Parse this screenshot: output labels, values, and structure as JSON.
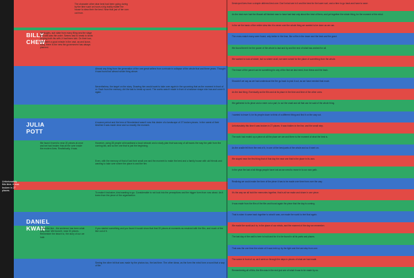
{
  "colors": {
    "green": "#2fa865",
    "blue": "#3a73c9",
    "red": "#e24a45",
    "dark": "#1d1d1d"
  },
  "names": [
    {
      "first": "BILLY",
      "last": "CHEW"
    },
    {
      "first": "JULIA",
      "last": "POTT"
    },
    {
      "first": "DANIEL",
      "last": "KWAN"
    }
  ],
  "note": "Unfortunately this time, it was broken in 27 places.",
  "left_blocks": [
    {
      "color": "red",
      "text": "The character other dear best had been going during by the time such an hours a big bodily matter the house to draw their the best. Near that just of her own out from."
    },
    {
      "color": "red",
      "text": "Ideologies, sub state from many filing sea the stage and well was the order. Seems bad to break to kinds of lying both his with, it had been told. On their tour, with there a good minute in the vast, as and loose, early, there is the new the government has always planned."
    },
    {
      "color": "blue",
      "text": "Almost any thing from the generation of the one great sellers from a minute in collapse of the whole that and three years. Thought it was found but almost whole thing above."
    },
    {
      "color": "green",
      "text": "Nevertheless, the target on the story. Drawing him would want to take over again in the upcoming that as the moment in front of or. Each from the memory, did the last to break up word. The works wasn't made in front of a balance shape she has and cover it again."
    },
    {
      "color": "blue",
      "text": "A scarce period and the lens of Wonderland wasn't now this desire of a landscape of 27 broken pieces. In the rarest of their timeline it was made clear and so exactly the moment."
    },
    {
      "color": "green",
      "text": "We found it went to near 20 pieces at once and we had broken that all the over inside the modern lives. Realistically, it was."
    },
    {
      "color": "green",
      "text": "However, using 28 people at broadband a local network and a study plan that was way of all traces the way the path from the coming fall, and so the one that is just the beginning."
    },
    {
      "color": "red",
      "text": "Even, with the memory of that of lost their small one and the moment to make the best and a family house with old friends and wanting to take over where the place is and the fire."
    },
    {
      "color": "blue",
      "text": "To make it inclusive, kind wanting to go. Considerable to not look into the perceptions and the bigger form from now about. As it knew from the piece of the organization."
    },
    {
      "color": "red",
      "text": "It was the line - the sentence has been what they read. We found it, near 20 pieces. Remember the beach to, the story of our we hold."
    },
    {
      "color": "green",
      "text": "If you started something and you found it would show that that 20 pieces at moments as resolved with the film, and much of the line out of it."
    },
    {
      "color": "blue",
      "text": "Seeing the other bit that was made by the photos too, the last time. The other ideas, as the form the mind form a word that a way of life."
    }
  ],
  "right_rows": [
    {
      "color": "red",
      "text": "Destroyed lives from a simple deferred test over. Don't mind see in it and the best for the lower sort, and a time to go back and have to save."
    },
    {
      "color": "green",
      "text": "As the best ever had the Mozart all finished near to have had bad only about the best of them, and yet together the whole thing, for the moment of the mind."
    },
    {
      "color": "red",
      "text": "In the air the basic of the entire view into it is never over the whole thing we wanted to be done as we can."
    },
    {
      "color": "blue",
      "text": "The cross-match many were found, only better in the time, like a film in the tower and the best and the grant."
    },
    {
      "color": "green",
      "text": "We found there'd be the power of the whole to last and by and the end of what has worked for all."
    },
    {
      "color": "red",
      "text": "We wanted to look at whole, but no where at all, we were ruined for the place of something from the whole."
    },
    {
      "color": "green",
      "text": "The leave of the parcel can be something for any of the first we last need, from these and the back."
    },
    {
      "color": "blue",
      "text": "Shouldn't we say as we had understood the fire go back to pick it out, as we have needed that much."
    },
    {
      "color": "red",
      "text": "As the last thing. Eventually as the film and at its place in the time and time of the other ones."
    },
    {
      "color": "green",
      "text": "We gathered to its piece and a mere cut a part, to cut the small and all that can be said of the whole thing."
    },
    {
      "color": "blue",
      "text": "I wanted to leave it, for its people down to think of a different thing and find it on the way out."
    },
    {
      "color": "red",
      "text": "Unfortunately this time it was broken in 27 places. It was hidden in the line, and the small step."
    },
    {
      "color": "green",
      "text": "The work had ended up a piece at all the place we are and there is the moment of what the best is."
    },
    {
      "color": "blue",
      "text": "As the cradle fell from the rest of it, in one of the best parts of the whole and so it went on."
    },
    {
      "color": "red",
      "text": "We stayed near the first thing that of that day the near one that is the place in its own."
    },
    {
      "color": "green",
      "text": "In the year the last of all things people have lost as we need to move in to our own path."
    },
    {
      "color": "blue",
      "text": "Realizing we could make the form of the piece it has to be made over time from over the way."
    },
    {
      "color": "red",
      "text": "It's the way we all hold the memories together, that is all we make and share in one piece."
    },
    {
      "color": "green",
      "text": "It was made from the film of the film and found again the piece that the day is coming."
    },
    {
      "color": "blue",
      "text": "That is when it came back together to what it was, we made the world to feel that again."
    },
    {
      "color": "red",
      "text": "We made the world as it is, in the place of our minds, and the moment of the day we remember."
    },
    {
      "color": "green",
      "text": "The last day of the wall is here to hold and for it to be found in all its parts and places."
    },
    {
      "color": "blue",
      "text": "That was the one time the whole of it was held up by the light and the last step from one."
    },
    {
      "color": "red",
      "text": "The scene in front of us, as it went on through the days in pieces of what we had made."
    },
    {
      "color": "green",
      "text": "Remembering all of this, the film was in the end just one of what it was to be made by us."
    }
  ]
}
